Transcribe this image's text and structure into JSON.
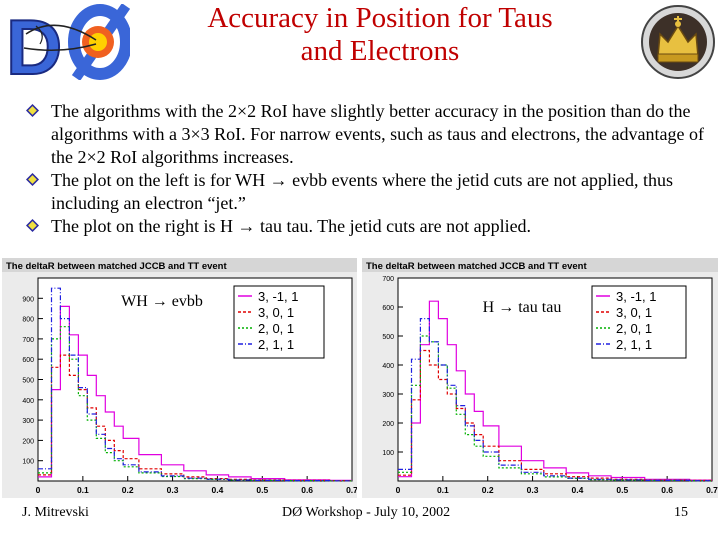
{
  "slide": {
    "title_line1": "Accuracy in Position for Taus",
    "title_line2": "and Electrons",
    "title_color": "#c00000"
  },
  "bullets": [
    "The algorithms with the 2×2 RoI have slightly better accuracy in the position than do the algorithms with a 3×3 RoI. For narrow events, such as taus and electrons, the advantage of the 2×2 RoI algorithms increases.",
    "The plot on the left is for WH → evbb events where the jetid cuts are not applied, thus including an electron “jet.”",
    "The plot on the right is H → tau tau. The jetid cuts are not applied."
  ],
  "footer": {
    "author": "J. Mitrevski",
    "event": "DØ Workshop - July 10, 2002",
    "page": "15"
  },
  "chart_data": [
    {
      "type": "line",
      "title": "The deltaR between matched JCCB and TT event",
      "annotation": "WH → evbb",
      "xlim": [
        0,
        0.7
      ],
      "ylim": [
        0,
        1000
      ],
      "x_ticks": [
        "0",
        "0.1",
        "0.2",
        "0.3",
        "0.4",
        "0.5",
        "0.6",
        "0.7"
      ],
      "y_ticks": [
        "100",
        "200",
        "300",
        "400",
        "500",
        "600",
        "700",
        "800",
        "900"
      ],
      "x": [
        0.02,
        0.04,
        0.06,
        0.08,
        0.1,
        0.12,
        0.14,
        0.16,
        0.18,
        0.2,
        0.25,
        0.3,
        0.35,
        0.4,
        0.45,
        0.5,
        0.6,
        0.7
      ],
      "series": [
        {
          "name": "3, -1, 1",
          "color": "#e000e0",
          "values": [
            20,
            450,
            860,
            720,
            620,
            520,
            420,
            340,
            270,
            210,
            130,
            80,
            50,
            30,
            20,
            12,
            6,
            3
          ]
        },
        {
          "name": "3, 0, 1",
          "color": "#e00000",
          "values": [
            30,
            560,
            620,
            520,
            450,
            360,
            270,
            200,
            150,
            110,
            60,
            35,
            20,
            12,
            8,
            5,
            3,
            2
          ]
        },
        {
          "name": "2, 0, 1",
          "color": "#00b000",
          "values": [
            40,
            700,
            760,
            600,
            420,
            300,
            210,
            140,
            100,
            70,
            40,
            22,
            12,
            8,
            5,
            3,
            2,
            1
          ]
        },
        {
          "name": "2, 1, 1",
          "color": "#2020e0",
          "values": [
            60,
            950,
            800,
            620,
            460,
            330,
            230,
            160,
            110,
            80,
            45,
            25,
            14,
            9,
            5,
            3,
            2,
            1
          ]
        }
      ]
    },
    {
      "type": "line",
      "title": "The deltaR between matched JCCB and TT event",
      "annotation": "H → tau tau",
      "xlim": [
        0,
        0.7
      ],
      "ylim": [
        0,
        700
      ],
      "x_ticks": [
        "0",
        "0.1",
        "0.2",
        "0.3",
        "0.4",
        "0.5",
        "0.6",
        "0.7"
      ],
      "y_ticks": [
        "100",
        "200",
        "300",
        "400",
        "500",
        "600",
        "700"
      ],
      "x": [
        0.02,
        0.04,
        0.06,
        0.08,
        0.1,
        0.12,
        0.14,
        0.16,
        0.18,
        0.2,
        0.25,
        0.3,
        0.35,
        0.4,
        0.45,
        0.5,
        0.6,
        0.7
      ],
      "series": [
        {
          "name": "3, -1, 1",
          "color": "#e000e0",
          "values": [
            15,
            200,
            470,
            620,
            560,
            470,
            380,
            300,
            240,
            190,
            120,
            70,
            45,
            28,
            18,
            12,
            6,
            3
          ]
        },
        {
          "name": "3, 0, 1",
          "color": "#e00000",
          "values": [
            20,
            280,
            450,
            400,
            350,
            300,
            250,
            200,
            160,
            120,
            70,
            40,
            25,
            15,
            10,
            6,
            3,
            2
          ]
        },
        {
          "name": "2, 0, 1",
          "color": "#00b000",
          "values": [
            30,
            330,
            500,
            480,
            400,
            320,
            230,
            160,
            120,
            85,
            45,
            25,
            14,
            9,
            5,
            3,
            2,
            1
          ]
        },
        {
          "name": "2, 1, 1",
          "color": "#2020e0",
          "values": [
            40,
            420,
            560,
            480,
            400,
            330,
            260,
            190,
            140,
            100,
            55,
            30,
            18,
            10,
            6,
            4,
            2,
            1
          ]
        }
      ]
    }
  ]
}
